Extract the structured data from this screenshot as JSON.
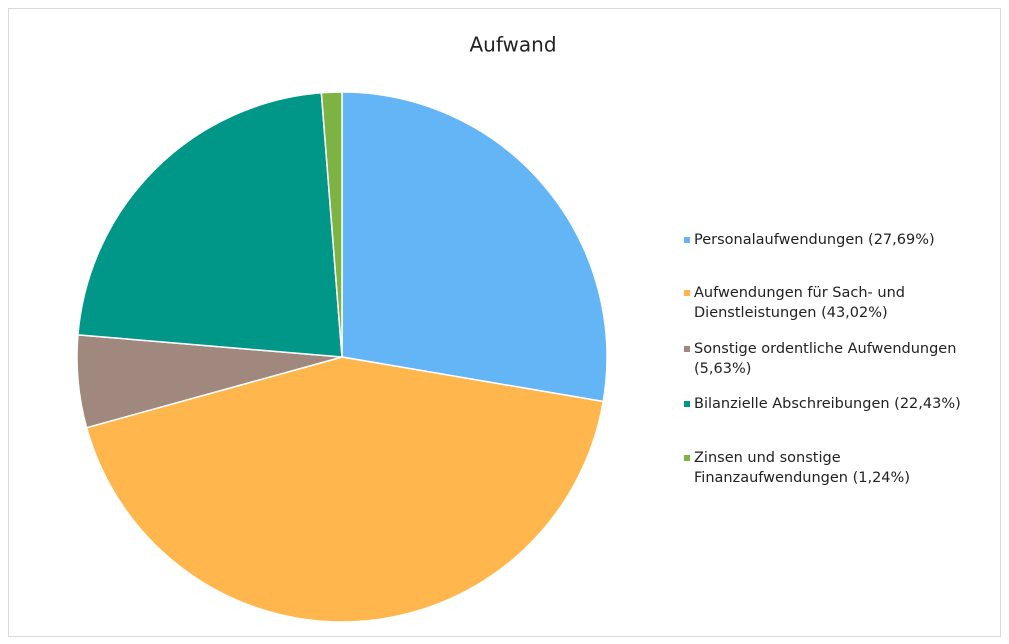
{
  "chart_data": {
    "type": "pie",
    "title": "Aufwand",
    "labels": [
      "Personalaufwendungen (27,69%)",
      "Aufwendungen für Sach- und Dienstleistungen (43,02%)",
      "Sonstige ordentliche Aufwendungen (5,63%)",
      "Bilanzielle Abschreibungen (22,43%)",
      "Zinsen und sonstige Finanzaufwendungen (1,24%)"
    ],
    "values": [
      27.69,
      43.02,
      5.63,
      22.43,
      1.24
    ],
    "colors": [
      "#64b5f6",
      "#ffb74d",
      "#a1887f",
      "#009688",
      "#7cb342"
    ],
    "legend": "right"
  }
}
